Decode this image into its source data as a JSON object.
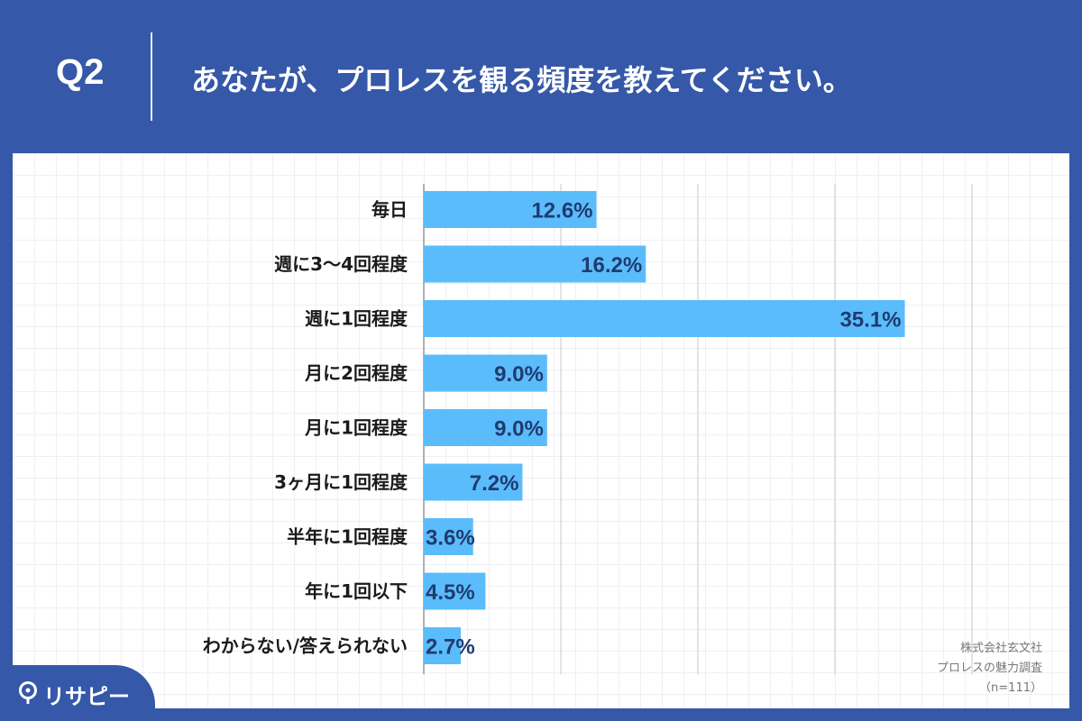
{
  "header": {
    "qnum": "Q2",
    "title": "あなたが、プロレスを観る頻度を教えてください。"
  },
  "chart_data": {
    "type": "bar",
    "orientation": "horizontal",
    "categories": [
      "毎日",
      "週に3〜4回程度",
      "週に1回程度",
      "月に2回程度",
      "月に1回程度",
      "3ヶ月に1回程度",
      "半年に1回程度",
      "年に1回以下",
      "わからない/答えられない"
    ],
    "values": [
      12.6,
      16.2,
      35.1,
      9.0,
      9.0,
      7.2,
      3.6,
      4.5,
      2.7
    ],
    "value_labels": [
      "12.6%",
      "16.2%",
      "35.1%",
      "9.0%",
      "9.0%",
      "7.2%",
      "3.6%",
      "4.5%",
      "2.7%"
    ],
    "xlim": [
      0,
      40
    ],
    "grid": true,
    "bar_color": "#5bbcfb"
  },
  "notes": {
    "company": "株式会社玄文社",
    "survey": "プロレスの魅力調査",
    "sample": "（n=111）"
  },
  "logo": {
    "text": "リサピー",
    "icon": "pin-icon"
  }
}
